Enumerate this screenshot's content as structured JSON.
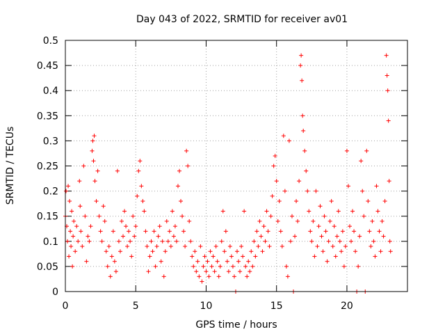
{
  "chart_data": {
    "type": "scatter",
    "title": "Day 043 of 2022, SRMTID for receiver av01",
    "xlabel": "GPS time / hours",
    "ylabel": "SRMTID / TECUs",
    "xlim": [
      0,
      24.3
    ],
    "ylim": [
      0,
      0.5
    ],
    "x_ticks": [
      0,
      5,
      10,
      15,
      20
    ],
    "y_ticks": [
      0,
      0.05,
      0.1,
      0.15,
      0.2,
      0.25,
      0.3,
      0.35,
      0.4,
      0.45,
      0.5
    ],
    "x_tick_labels": [
      "0",
      "5",
      "10",
      "15",
      "20"
    ],
    "y_tick_labels": [
      "0",
      "0.05",
      "0.1",
      "0.15",
      "0.2",
      "0.25",
      "0.3",
      "0.35",
      "0.4",
      "0.45",
      "0.5"
    ],
    "grid": true,
    "marker": "+",
    "color": "#ff0000",
    "series": [
      {
        "name": "SRMTID",
        "points": [
          [
            0.0,
            0.15
          ],
          [
            0.05,
            0.2
          ],
          [
            0.1,
            0.13
          ],
          [
            0.15,
            0.1
          ],
          [
            0.2,
            0.21
          ],
          [
            0.25,
            0.07
          ],
          [
            0.3,
            0.18
          ],
          [
            0.35,
            0.12
          ],
          [
            0.4,
            0.09
          ],
          [
            0.45,
            0.16
          ],
          [
            0.5,
            0.05
          ],
          [
            0.55,
            0.11
          ],
          [
            0.6,
            0.14
          ],
          [
            0.7,
            0.08
          ],
          [
            0.8,
            0.13
          ],
          [
            0.9,
            0.1
          ],
          [
            1.0,
            0.22
          ],
          [
            1.05,
            0.17
          ],
          [
            1.1,
            0.12
          ],
          [
            1.2,
            0.09
          ],
          [
            1.3,
            0.25
          ],
          [
            1.4,
            0.15
          ],
          [
            1.5,
            0.06
          ],
          [
            1.6,
            0.11
          ],
          [
            1.7,
            0.1
          ],
          [
            1.8,
            0.13
          ],
          [
            1.9,
            0.28
          ],
          [
            1.95,
            0.3
          ],
          [
            2.0,
            0.26
          ],
          [
            2.05,
            0.31
          ],
          [
            2.1,
            0.22
          ],
          [
            2.2,
            0.18
          ],
          [
            2.3,
            0.24
          ],
          [
            2.4,
            0.15
          ],
          [
            2.5,
            0.12
          ],
          [
            2.6,
            0.1
          ],
          [
            2.7,
            0.17
          ],
          [
            2.8,
            0.14
          ],
          [
            2.9,
            0.08
          ],
          [
            3.0,
            0.05
          ],
          [
            3.1,
            0.09
          ],
          [
            3.2,
            0.03
          ],
          [
            3.3,
            0.07
          ],
          [
            3.4,
            0.12
          ],
          [
            3.5,
            0.06
          ],
          [
            3.6,
            0.04
          ],
          [
            3.7,
            0.24
          ],
          [
            3.8,
            0.1
          ],
          [
            3.9,
            0.08
          ],
          [
            4.0,
            0.14
          ],
          [
            4.1,
            0.11
          ],
          [
            4.2,
            0.16
          ],
          [
            4.3,
            0.13
          ],
          [
            4.4,
            0.09
          ],
          [
            4.5,
            0.12
          ],
          [
            4.6,
            0.1
          ],
          [
            4.7,
            0.07
          ],
          [
            4.8,
            0.15
          ],
          [
            4.9,
            0.11
          ],
          [
            5.0,
            0.13
          ],
          [
            5.1,
            0.19
          ],
          [
            5.2,
            0.24
          ],
          [
            5.3,
            0.26
          ],
          [
            5.4,
            0.21
          ],
          [
            5.5,
            0.18
          ],
          [
            5.6,
            0.16
          ],
          [
            5.7,
            0.12
          ],
          [
            5.8,
            0.09
          ],
          [
            5.9,
            0.04
          ],
          [
            6.0,
            0.07
          ],
          [
            6.1,
            0.1
          ],
          [
            6.2,
            0.08
          ],
          [
            6.3,
            0.12
          ],
          [
            6.4,
            0.05
          ],
          [
            6.5,
            0.09
          ],
          [
            6.6,
            0.11
          ],
          [
            6.7,
            0.13
          ],
          [
            6.8,
            0.06
          ],
          [
            6.9,
            0.1
          ],
          [
            7.0,
            0.03
          ],
          [
            7.1,
            0.08
          ],
          [
            7.2,
            0.14
          ],
          [
            7.3,
            0.1
          ],
          [
            7.4,
            0.12
          ],
          [
            7.5,
            0.09
          ],
          [
            7.6,
            0.16
          ],
          [
            7.7,
            0.11
          ],
          [
            7.8,
            0.13
          ],
          [
            7.9,
            0.1
          ],
          [
            8.0,
            0.21
          ],
          [
            8.1,
            0.24
          ],
          [
            8.2,
            0.18
          ],
          [
            8.3,
            0.15
          ],
          [
            8.4,
            0.12
          ],
          [
            8.5,
            0.09
          ],
          [
            8.6,
            0.28
          ],
          [
            8.7,
            0.25
          ],
          [
            8.8,
            0.14
          ],
          [
            8.9,
            0.1
          ],
          [
            9.0,
            0.07
          ],
          [
            9.1,
            0.05
          ],
          [
            9.2,
            0.08
          ],
          [
            9.3,
            0.04
          ],
          [
            9.4,
            0.06
          ],
          [
            9.5,
            0.03
          ],
          [
            9.6,
            0.09
          ],
          [
            9.7,
            0.02
          ],
          [
            9.8,
            0.05
          ],
          [
            9.9,
            0.07
          ],
          [
            10.0,
            0.04
          ],
          [
            10.1,
            0.06
          ],
          [
            10.2,
            0.03
          ],
          [
            10.3,
            0.08
          ],
          [
            10.4,
            0.05
          ],
          [
            10.5,
            0.07
          ],
          [
            10.6,
            0.04
          ],
          [
            10.7,
            0.09
          ],
          [
            10.8,
            0.06
          ],
          [
            10.9,
            0.03
          ],
          [
            11.0,
            0.05
          ],
          [
            11.1,
            0.1
          ],
          [
            11.2,
            0.16
          ],
          [
            11.3,
            0.08
          ],
          [
            11.4,
            0.12
          ],
          [
            11.5,
            0.06
          ],
          [
            11.6,
            0.04
          ],
          [
            11.7,
            0.09
          ],
          [
            11.8,
            0.07
          ],
          [
            11.9,
            0.05
          ],
          [
            12.0,
            0.03
          ],
          [
            12.1,
            0.0
          ],
          [
            12.2,
            0.08
          ],
          [
            12.3,
            0.06
          ],
          [
            12.4,
            0.04
          ],
          [
            12.5,
            0.09
          ],
          [
            12.6,
            0.07
          ],
          [
            12.7,
            0.16
          ],
          [
            12.8,
            0.05
          ],
          [
            12.9,
            0.03
          ],
          [
            13.0,
            0.06
          ],
          [
            13.1,
            0.04
          ],
          [
            13.2,
            0.08
          ],
          [
            13.3,
            0.05
          ],
          [
            13.4,
            0.1
          ],
          [
            13.5,
            0.07
          ],
          [
            13.6,
            0.12
          ],
          [
            13.7,
            0.09
          ],
          [
            13.8,
            0.14
          ],
          [
            13.9,
            0.11
          ],
          [
            14.0,
            0.08
          ],
          [
            14.1,
            0.13
          ],
          [
            14.2,
            0.1
          ],
          [
            14.3,
            0.16
          ],
          [
            14.4,
            0.12
          ],
          [
            14.5,
            0.09
          ],
          [
            14.6,
            0.15
          ],
          [
            14.7,
            0.19
          ],
          [
            14.8,
            0.25
          ],
          [
            14.9,
            0.27
          ],
          [
            15.0,
            0.22
          ],
          [
            15.1,
            0.14
          ],
          [
            15.2,
            0.18
          ],
          [
            15.3,
            0.12
          ],
          [
            15.4,
            0.09
          ],
          [
            15.5,
            0.31
          ],
          [
            15.6,
            0.2
          ],
          [
            15.7,
            0.05
          ],
          [
            15.8,
            0.03
          ],
          [
            15.9,
            0.3
          ],
          [
            16.0,
            0.1
          ],
          [
            16.1,
            0.15
          ],
          [
            16.2,
            0.0
          ],
          [
            16.3,
            0.11
          ],
          [
            16.4,
            0.18
          ],
          [
            16.5,
            0.14
          ],
          [
            16.6,
            0.22
          ],
          [
            16.7,
            0.45
          ],
          [
            16.75,
            0.47
          ],
          [
            16.8,
            0.42
          ],
          [
            16.85,
            0.35
          ],
          [
            16.9,
            0.32
          ],
          [
            17.0,
            0.28
          ],
          [
            17.1,
            0.24
          ],
          [
            17.2,
            0.2
          ],
          [
            17.3,
            0.16
          ],
          [
            17.4,
            0.12
          ],
          [
            17.5,
            0.1
          ],
          [
            17.6,
            0.14
          ],
          [
            17.7,
            0.07
          ],
          [
            17.8,
            0.2
          ],
          [
            17.9,
            0.09
          ],
          [
            18.0,
            0.13
          ],
          [
            18.1,
            0.17
          ],
          [
            18.2,
            0.11
          ],
          [
            18.3,
            0.08
          ],
          [
            18.4,
            0.15
          ],
          [
            18.5,
            0.12
          ],
          [
            18.6,
            0.06
          ],
          [
            18.7,
            0.1
          ],
          [
            18.8,
            0.14
          ],
          [
            18.9,
            0.18
          ],
          [
            19.0,
            0.09
          ],
          [
            19.1,
            0.13
          ],
          [
            19.2,
            0.07
          ],
          [
            19.3,
            0.11
          ],
          [
            19.4,
            0.16
          ],
          [
            19.5,
            0.1
          ],
          [
            19.6,
            0.08
          ],
          [
            19.7,
            0.12
          ],
          [
            19.8,
            0.05
          ],
          [
            19.9,
            0.09
          ],
          [
            20.0,
            0.28
          ],
          [
            20.1,
            0.21
          ],
          [
            20.2,
            0.13
          ],
          [
            20.3,
            0.1
          ],
          [
            20.4,
            0.16
          ],
          [
            20.5,
            0.12
          ],
          [
            20.6,
            0.08
          ],
          [
            20.7,
            0.0
          ],
          [
            20.8,
            0.05
          ],
          [
            20.9,
            0.11
          ],
          [
            21.0,
            0.26
          ],
          [
            21.1,
            0.2
          ],
          [
            21.2,
            0.15
          ],
          [
            21.3,
            0.0
          ],
          [
            21.4,
            0.28
          ],
          [
            21.5,
            0.18
          ],
          [
            21.6,
            0.12
          ],
          [
            21.7,
            0.09
          ],
          [
            21.8,
            0.14
          ],
          [
            21.9,
            0.1
          ],
          [
            22.0,
            0.07
          ],
          [
            22.1,
            0.21
          ],
          [
            22.2,
            0.16
          ],
          [
            22.3,
            0.12
          ],
          [
            22.4,
            0.08
          ],
          [
            22.5,
            0.14
          ],
          [
            22.6,
            0.11
          ],
          [
            22.7,
            0.18
          ],
          [
            22.8,
            0.47
          ],
          [
            22.85,
            0.43
          ],
          [
            22.9,
            0.4
          ],
          [
            22.95,
            0.34
          ],
          [
            23.0,
            0.22
          ],
          [
            23.05,
            0.1
          ],
          [
            23.1,
            0.08
          ]
        ]
      }
    ]
  }
}
